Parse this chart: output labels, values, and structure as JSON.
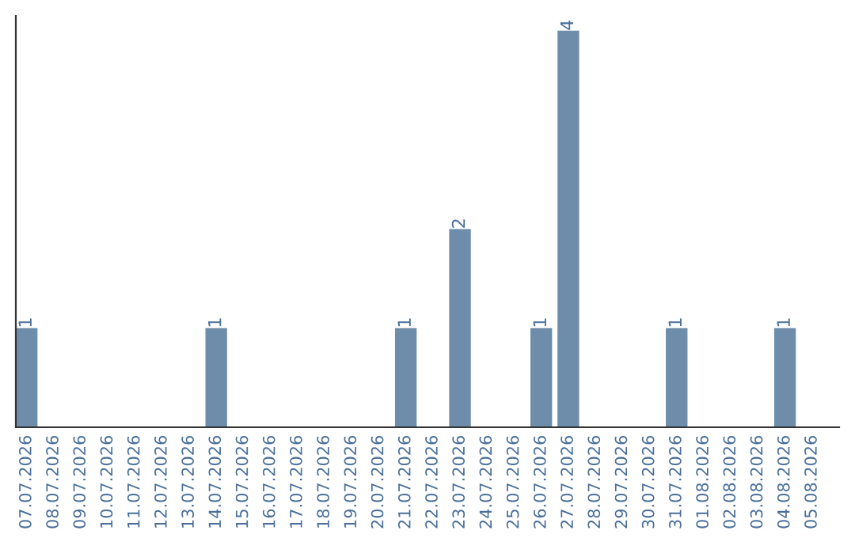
{
  "chart_data": {
    "type": "bar",
    "categories": [
      "07.07.2026",
      "08.07.2026",
      "09.07.2026",
      "10.07.2026",
      "11.07.2026",
      "12.07.2026",
      "13.07.2026",
      "14.07.2026",
      "15.07.2026",
      "16.07.2026",
      "17.07.2026",
      "18.07.2026",
      "19.07.2026",
      "20.07.2026",
      "21.07.2026",
      "22.07.2026",
      "23.07.2026",
      "24.07.2026",
      "25.07.2026",
      "26.07.2026",
      "27.07.2026",
      "28.07.2026",
      "29.07.2026",
      "30.07.2026",
      "31.07.2026",
      "01.08.2026",
      "02.08.2026",
      "03.08.2026",
      "04.08.2026",
      "05.08.2026"
    ],
    "values": [
      1,
      0,
      0,
      0,
      0,
      0,
      0,
      1,
      0,
      0,
      0,
      0,
      0,
      0,
      1,
      0,
      2,
      0,
      0,
      1,
      4,
      0,
      0,
      0,
      1,
      0,
      0,
      0,
      1,
      0
    ],
    "value_labels": [
      "1",
      null,
      null,
      null,
      null,
      null,
      null,
      "1",
      null,
      null,
      null,
      null,
      null,
      null,
      "1",
      null,
      "2",
      null,
      null,
      "1",
      "4",
      null,
      null,
      null,
      "1",
      null,
      null,
      null,
      "1",
      null
    ],
    "color": "#6d8dab",
    "ylim": [
      0,
      4.15
    ],
    "tick_labels": "x",
    "grid": false,
    "legend": false
  }
}
